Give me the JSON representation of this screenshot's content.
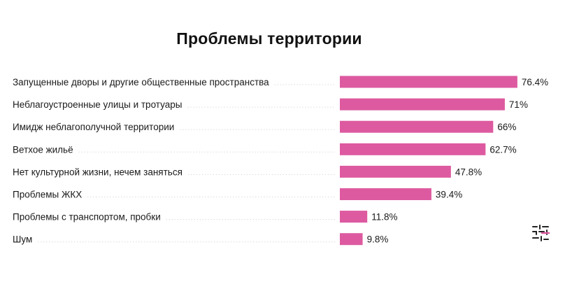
{
  "chart_data": {
    "type": "bar",
    "orientation": "horizontal",
    "title": "Проблемы территории",
    "categories": [
      "Запущенные дворы и другие общественные пространства",
      "Неблагоустроенные улицы и тротуары",
      "Имидж неблагополучной территории",
      "Ветхое жильё",
      "Нет культурной жизни, нечем заняться",
      "Проблемы ЖКХ",
      "Проблемы с транспортом, пробки",
      "Шум"
    ],
    "values": [
      76.4,
      71,
      66,
      62.7,
      47.8,
      39.4,
      11.8,
      9.8
    ],
    "value_labels": [
      "76.4%",
      "71%",
      "66%",
      "62.7%",
      "47.8%",
      "39.4%",
      "11.8%",
      "9.8%"
    ],
    "unit": "%",
    "xlim": [
      0,
      100
    ],
    "grid": false,
    "legend": "none",
    "bar_color": "#dd5aa0"
  },
  "logo": {
    "icon": "brand-logo-icon"
  }
}
